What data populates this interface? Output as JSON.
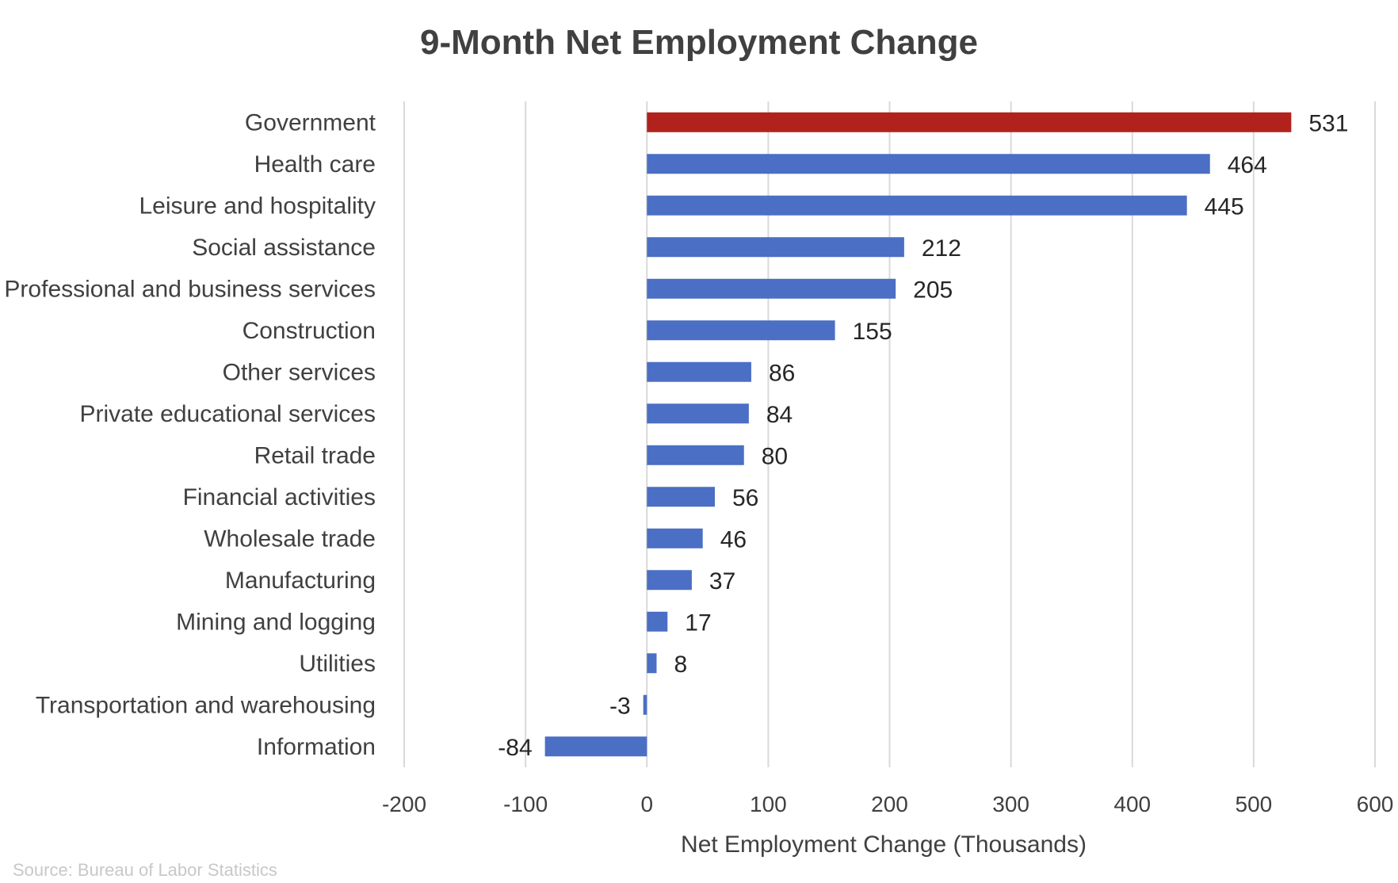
{
  "chart_data": {
    "type": "bar",
    "orientation": "horizontal",
    "title": "9-Month Net Employment Change",
    "xlabel": "Net Employment Change (Thousands)",
    "ylabel": "",
    "xlim": [
      -200,
      600
    ],
    "xticks": [
      -200,
      -100,
      0,
      100,
      200,
      300,
      400,
      500,
      600
    ],
    "grid": "vertical",
    "legend": "none",
    "categories": [
      "Government",
      "Health care",
      "Leisure and hospitality",
      "Social assistance",
      "Professional and business services",
      "Construction",
      "Other services",
      "Private educational services",
      "Retail trade",
      "Financial activities",
      "Wholesale trade",
      "Manufacturing",
      "Mining and logging",
      "Utilities",
      "Transportation and warehousing",
      "Information"
    ],
    "values": [
      531,
      464,
      445,
      212,
      205,
      155,
      86,
      84,
      80,
      56,
      46,
      37,
      17,
      8,
      -3,
      -84
    ],
    "highlight_index": 0,
    "colors": {
      "highlight": "#b2221c",
      "default": "#4a6fc4"
    },
    "source": "Source: Bureau of Labor Statistics"
  }
}
